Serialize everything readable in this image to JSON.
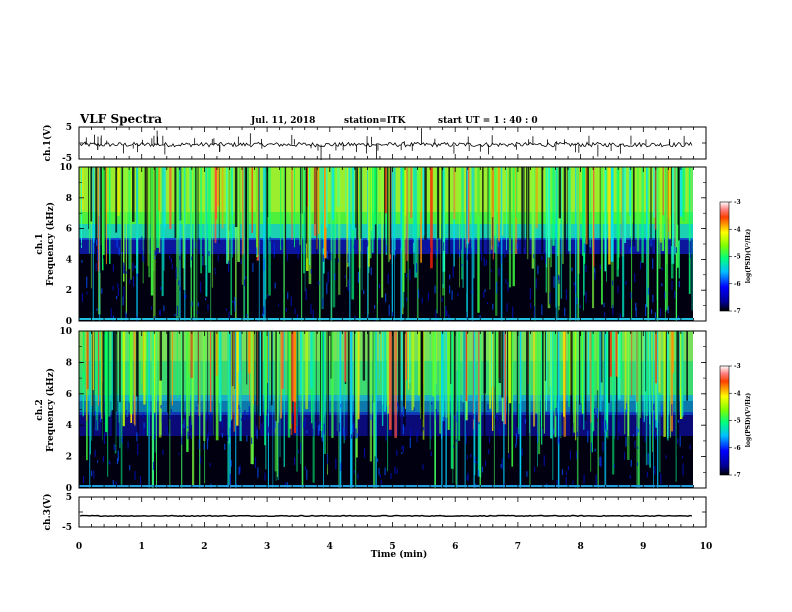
{
  "header": {
    "title": "VLF Spectra",
    "date": "Jul. 11, 2018",
    "station": "station=ITK",
    "start_ut": "start UT =  1 : 40 : 0"
  },
  "chart_data": [
    {
      "type": "line",
      "ylabel": "ch.1(V)",
      "ylim": [
        -5,
        5
      ],
      "yticks": [
        "5",
        "-5"
      ],
      "xlim": [
        0,
        10
      ],
      "baseline": -0.5
    },
    {
      "type": "heatmap",
      "ylabel_line1": "ch.1",
      "ylabel_line2": "Frequency (kHz)",
      "ylim": [
        0,
        10
      ],
      "yticks": [
        "0",
        "2",
        "4",
        "6",
        "8",
        "10"
      ],
      "xlim": [
        0,
        9.85
      ],
      "colorbar": {
        "min": -7,
        "max": -3,
        "ticks": [
          "-3",
          "-4",
          "-5",
          "-6",
          "-7"
        ],
        "label": "log(PSD)(V²/Hz)"
      }
    },
    {
      "type": "heatmap",
      "ylabel_line1": "ch.2",
      "ylabel_line2": "Frequency (kHz)",
      "ylim": [
        0,
        10
      ],
      "yticks": [
        "0",
        "2",
        "4",
        "6",
        "8",
        "10"
      ],
      "xlim": [
        0,
        9.85
      ],
      "colorbar": {
        "min": -7,
        "max": -3,
        "ticks": [
          "-3",
          "-4",
          "-5",
          "-6",
          "-7"
        ],
        "label": "log(PSD)(V²/Hz)"
      }
    },
    {
      "type": "line",
      "ylabel": "ch.3(V)",
      "ylim": [
        -5,
        5
      ],
      "yticks": [
        "5",
        "-5"
      ],
      "xlim": [
        0,
        10
      ],
      "baseline": -1.3
    }
  ],
  "x_axis": {
    "label": "Time (min)",
    "ticks": [
      "0",
      "1",
      "2",
      "3",
      "4",
      "5",
      "6",
      "7",
      "8",
      "9",
      "10"
    ]
  }
}
